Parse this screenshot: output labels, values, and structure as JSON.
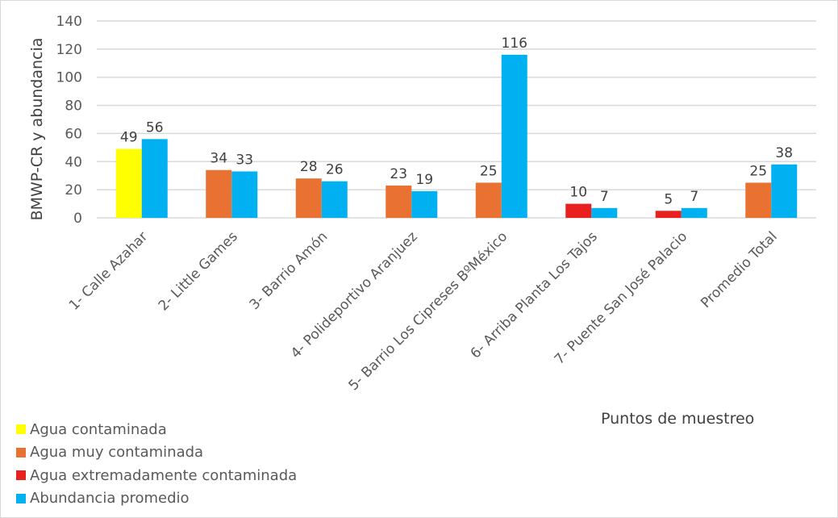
{
  "chart_data": {
    "type": "bar",
    "xlabel": "Puntos de muestreo",
    "ylabel": "BMWP-CR y abundancia",
    "ylim": [
      0,
      140
    ],
    "yticks": [
      0,
      20,
      40,
      60,
      80,
      100,
      120,
      140
    ],
    "grid": true,
    "legend_position": "bottom-left",
    "categories": [
      "1- Calle Azahar",
      "2- Little Games",
      "3- Barrio Amón",
      "4- Polideportivo Aranjuez",
      "5- Barrio Los Cipreses BºMéxico",
      "6- Arriba Planta Los Tajos",
      "7- Puente San José Palacio",
      "Promedio Total"
    ],
    "series": [
      {
        "values": [
          49,
          34,
          28,
          23,
          25,
          10,
          5,
          25
        ],
        "classes": [
          "Agua contaminada",
          "Agua muy contaminada",
          "Agua muy contaminada",
          "Agua muy contaminada",
          "Agua muy contaminada",
          "Agua extremadamente contaminada",
          "Agua extremadamente contaminada",
          "Agua muy contaminada"
        ]
      },
      {
        "name": "Abundancia promedio",
        "values": [
          56,
          33,
          26,
          19,
          116,
          7,
          7,
          38
        ]
      }
    ],
    "legend": [
      {
        "label": "Agua contaminada",
        "color": "#FFFF00"
      },
      {
        "label": "Agua muy contaminada",
        "color": "#E97132"
      },
      {
        "label": "Agua extremadamente contaminada",
        "color": "#E8201E"
      },
      {
        "label": "Abundancia promedio",
        "color": "#00B0F0"
      }
    ]
  }
}
